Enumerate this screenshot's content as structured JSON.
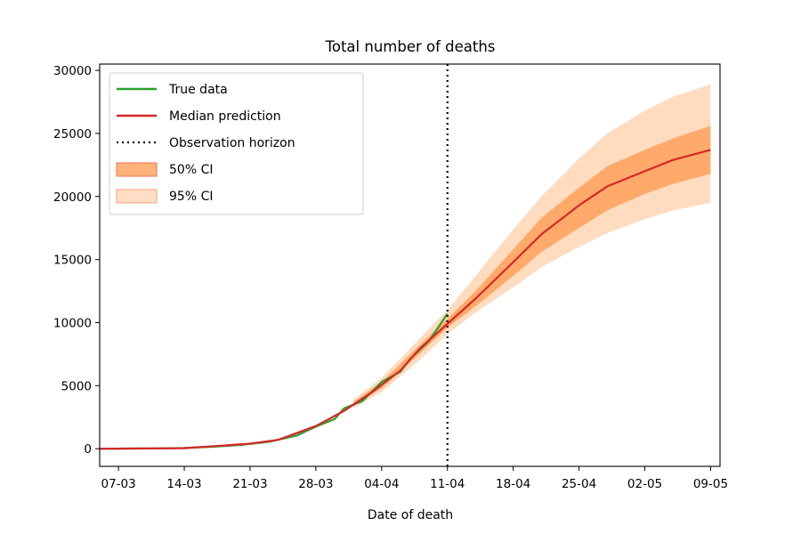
{
  "chart_data": {
    "type": "line",
    "title": "Total number of deaths",
    "xlabel": "Date of death",
    "ylabel": "",
    "xlim": [
      "2020-03-05",
      "2020-05-10"
    ],
    "ylim": [
      -1400,
      30500
    ],
    "x_ticks": [
      "07-03",
      "14-03",
      "21-03",
      "28-03",
      "04-04",
      "11-04",
      "18-04",
      "25-04",
      "02-05",
      "09-05"
    ],
    "x_tick_dates": [
      "2020-03-07",
      "2020-03-14",
      "2020-03-21",
      "2020-03-28",
      "2020-04-04",
      "2020-04-11",
      "2020-04-18",
      "2020-04-25",
      "2020-05-02",
      "2020-05-09"
    ],
    "y_ticks": [
      0,
      5000,
      10000,
      15000,
      20000,
      25000,
      30000
    ],
    "legend_position": "top-left",
    "grid": false,
    "observation_horizon": "2020-04-11",
    "series": [
      {
        "name": "True data",
        "color": "#2ca02c",
        "x": [
          "2020-03-05",
          "2020-03-08",
          "2020-03-11",
          "2020-03-14",
          "2020-03-17",
          "2020-03-20",
          "2020-03-23",
          "2020-03-26",
          "2020-03-28",
          "2020-03-30",
          "2020-03-31",
          "2020-04-02",
          "2020-04-04",
          "2020-04-06",
          "2020-04-07",
          "2020-04-09",
          "2020-04-10",
          "2020-04-11"
        ],
        "y": [
          0,
          10,
          25,
          60,
          150,
          300,
          550,
          1050,
          1750,
          2350,
          3200,
          3800,
          5300,
          6100,
          7100,
          8500,
          9600,
          10700
        ]
      },
      {
        "name": "Median prediction",
        "color": "#d62728",
        "x": [
          "2020-03-05",
          "2020-03-14",
          "2020-03-21",
          "2020-03-24",
          "2020-03-28",
          "2020-03-31",
          "2020-04-03",
          "2020-04-06",
          "2020-04-08",
          "2020-04-11",
          "2020-04-14",
          "2020-04-18",
          "2020-04-21",
          "2020-04-25",
          "2020-04-28",
          "2020-05-02",
          "2020-05-05",
          "2020-05-09"
        ],
        "y": [
          0,
          40,
          400,
          700,
          1800,
          3000,
          4500,
          6200,
          7900,
          9900,
          11900,
          14800,
          17000,
          19300,
          20800,
          22000,
          22900,
          23700
        ]
      },
      {
        "name": "50% CI",
        "color": "#ff9a4d",
        "x": [
          "2020-04-01",
          "2020-04-04",
          "2020-04-08",
          "2020-04-11",
          "2020-04-14",
          "2020-04-18",
          "2020-04-21",
          "2020-04-25",
          "2020-04-28",
          "2020-05-02",
          "2020-05-05",
          "2020-05-09"
        ],
        "lower": [
          3400,
          4800,
          7500,
          9600,
          11300,
          13700,
          15600,
          17500,
          18900,
          20200,
          21000,
          21800
        ],
        "upper": [
          3700,
          5300,
          8200,
          10300,
          12500,
          15800,
          18300,
          20700,
          22400,
          23700,
          24600,
          25600
        ]
      },
      {
        "name": "95% CI",
        "color": "#ffbe8c",
        "x": [
          "2020-04-01",
          "2020-04-04",
          "2020-04-08",
          "2020-04-11",
          "2020-04-14",
          "2020-04-18",
          "2020-04-21",
          "2020-04-25",
          "2020-04-28",
          "2020-05-02",
          "2020-05-05",
          "2020-05-09"
        ],
        "lower": [
          3200,
          4500,
          7000,
          9100,
          10800,
          12800,
          14400,
          16000,
          17100,
          18200,
          18900,
          19500
        ],
        "upper": [
          3900,
          5600,
          8700,
          11000,
          13700,
          17400,
          20000,
          23000,
          25000,
          26800,
          27900,
          28900
        ]
      }
    ],
    "legend": [
      {
        "label": "True data",
        "kind": "line",
        "color": "#2ca02c"
      },
      {
        "label": "Median prediction",
        "kind": "line",
        "color": "#d62728"
      },
      {
        "label": "Observation horizon",
        "kind": "dotted",
        "color": "#000000"
      },
      {
        "label": "50% CI",
        "kind": "patch",
        "color": "#ff9a4d"
      },
      {
        "label": "95% CI",
        "kind": "patch",
        "color": "#ffbe8c"
      }
    ]
  }
}
